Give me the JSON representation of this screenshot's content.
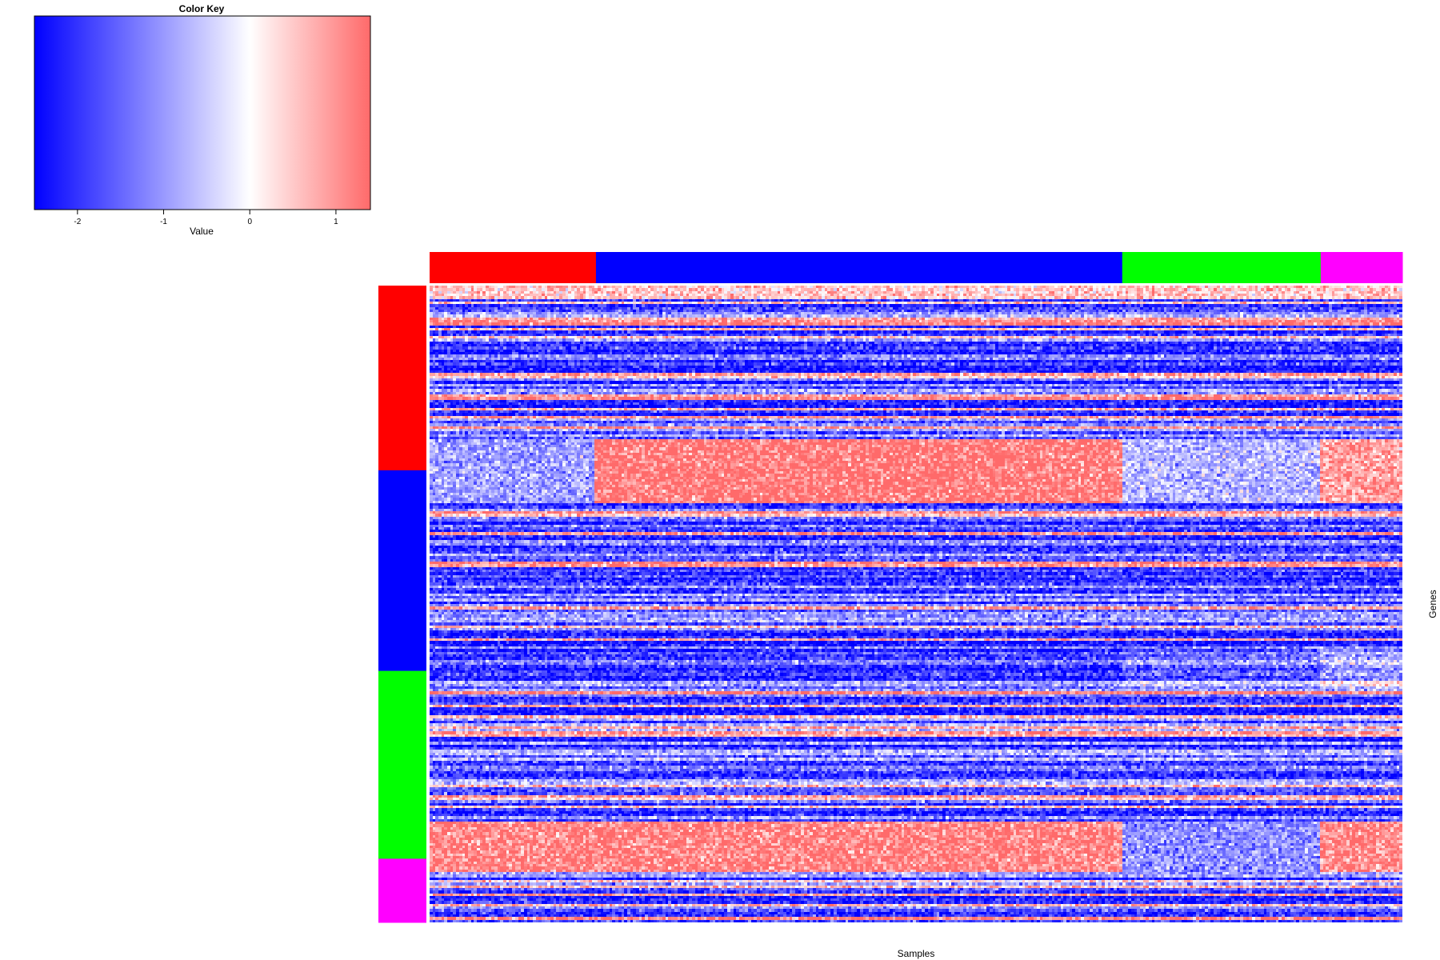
{
  "chart_data": {
    "type": "heatmap",
    "title": "",
    "xlabel": "Samples",
    "ylabel": "Genes",
    "color_key": {
      "title": "Color Key",
      "xlabel": "Value",
      "range": [
        -2.5,
        1.4
      ],
      "ticks": [
        -2,
        -1,
        0,
        1
      ],
      "tick_labels": [
        "-2",
        "-1",
        "0",
        "1"
      ],
      "colors": {
        "low": "#0000ff",
        "mid": "#ffffff",
        "high": "#ff6a6a"
      }
    },
    "column_groups": [
      {
        "color": "#ff0000",
        "fraction": 0.171
      },
      {
        "color": "#0000ff",
        "fraction": 0.541
      },
      {
        "color": "#00ff00",
        "fraction": 0.204
      },
      {
        "color": "#ff00ff",
        "fraction": 0.084
      }
    ],
    "row_groups": [
      {
        "color": "#ff0000",
        "fraction": 0.29
      },
      {
        "color": "#0000ff",
        "fraction": 0.315
      },
      {
        "color": "#00ff00",
        "fraction": 0.295
      },
      {
        "color": "#ff00ff",
        "fraction": 0.1
      }
    ],
    "n_rows": 240,
    "n_cols": 330,
    "grid": false,
    "legend": "top-left"
  }
}
